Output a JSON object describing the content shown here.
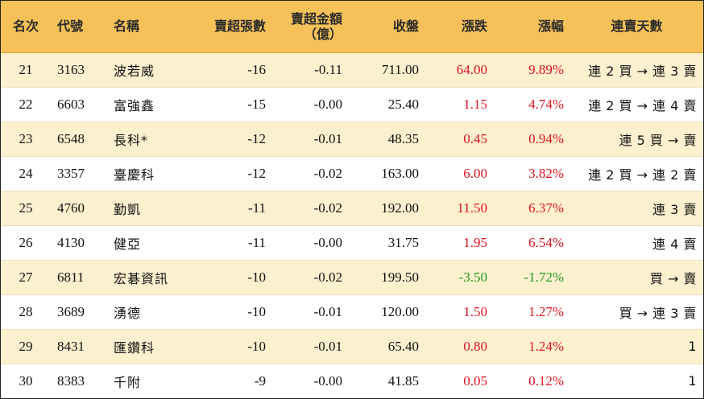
{
  "colors": {
    "header_bg": "#f5c158",
    "row_alt_bg": "#fdf0cf",
    "up": "#e0141e",
    "down": "#1a9a1a"
  },
  "headers": {
    "rank": "名次",
    "code": "代號",
    "name": "名稱",
    "oversold_lots": "賣超張數",
    "oversold_amount_line1": "賣超金額",
    "oversold_amount_line2": "（億）",
    "close": "收盤",
    "change": "漲跌",
    "change_pct": "漲幅",
    "streak": "連賣天數"
  },
  "rows": [
    {
      "rank": "21",
      "code": "3163",
      "name": "波若威",
      "lots": "-16",
      "amount": "-0.11",
      "close": "711.00",
      "change": "64.00",
      "pct": "9.89%",
      "dir": "up",
      "streak": "連 2 買 → 連 3 賣"
    },
    {
      "rank": "22",
      "code": "6603",
      "name": "富強鑫",
      "lots": "-15",
      "amount": "-0.00",
      "close": "25.40",
      "change": "1.15",
      "pct": "4.74%",
      "dir": "up",
      "streak": "連 2 買 → 連 4 賣"
    },
    {
      "rank": "23",
      "code": "6548",
      "name": "長科*",
      "lots": "-12",
      "amount": "-0.01",
      "close": "48.35",
      "change": "0.45",
      "pct": "0.94%",
      "dir": "up",
      "streak": "連 5 買 → 賣"
    },
    {
      "rank": "24",
      "code": "3357",
      "name": "臺慶科",
      "lots": "-12",
      "amount": "-0.02",
      "close": "163.00",
      "change": "6.00",
      "pct": "3.82%",
      "dir": "up",
      "streak": "連 2 買 → 連 2 賣"
    },
    {
      "rank": "25",
      "code": "4760",
      "name": "勤凱",
      "lots": "-11",
      "amount": "-0.02",
      "close": "192.00",
      "change": "11.50",
      "pct": "6.37%",
      "dir": "up",
      "streak": "連 3 賣"
    },
    {
      "rank": "26",
      "code": "4130",
      "name": "健亞",
      "lots": "-11",
      "amount": "-0.00",
      "close": "31.75",
      "change": "1.95",
      "pct": "6.54%",
      "dir": "up",
      "streak": "連 4 賣"
    },
    {
      "rank": "27",
      "code": "6811",
      "name": "宏碁資訊",
      "lots": "-10",
      "amount": "-0.02",
      "close": "199.50",
      "change": "-3.50",
      "pct": "-1.72%",
      "dir": "down",
      "streak": "買 → 賣"
    },
    {
      "rank": "28",
      "code": "3689",
      "name": "湧德",
      "lots": "-10",
      "amount": "-0.01",
      "close": "120.00",
      "change": "1.50",
      "pct": "1.27%",
      "dir": "up",
      "streak": "買 → 連 3 賣"
    },
    {
      "rank": "29",
      "code": "8431",
      "name": "匯鑽科",
      "lots": "-10",
      "amount": "-0.01",
      "close": "65.40",
      "change": "0.80",
      "pct": "1.24%",
      "dir": "up",
      "streak": "1"
    },
    {
      "rank": "30",
      "code": "8383",
      "name": "千附",
      "lots": "-9",
      "amount": "-0.00",
      "close": "41.85",
      "change": "0.05",
      "pct": "0.12%",
      "dir": "up",
      "streak": "1"
    }
  ]
}
